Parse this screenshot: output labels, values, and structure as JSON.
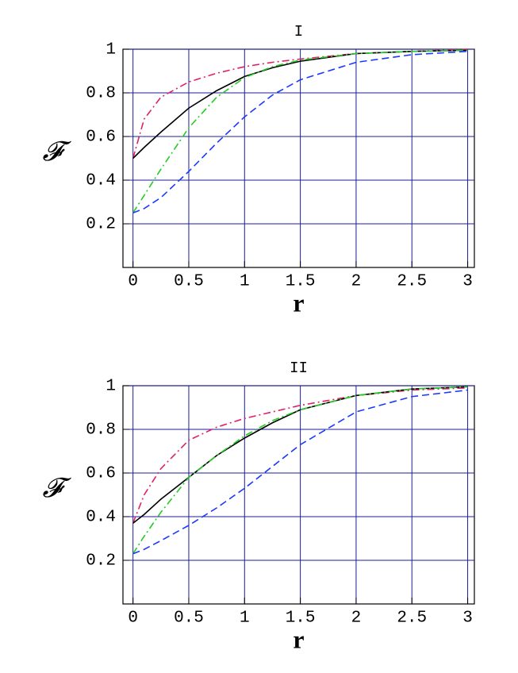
{
  "chart_data": [
    {
      "type": "line",
      "title": "I",
      "xlabel": "r",
      "ylabel": "𝓕",
      "x": [
        0,
        0.1,
        0.25,
        0.5,
        0.75,
        1,
        1.25,
        1.5,
        2,
        2.5,
        3
      ],
      "series": [
        {
          "color": "#e0206a",
          "dash": "dashdot",
          "values": [
            0.5,
            0.68,
            0.78,
            0.85,
            0.89,
            0.92,
            0.94,
            0.955,
            0.98,
            0.99,
            1.0
          ]
        },
        {
          "color": "#000000",
          "dash": "solid",
          "values": [
            0.5,
            0.55,
            0.62,
            0.73,
            0.81,
            0.875,
            0.915,
            0.945,
            0.98,
            0.99,
            0.995
          ]
        },
        {
          "color": "#22cc22",
          "dash": "dashdot",
          "values": [
            0.25,
            0.33,
            0.45,
            0.64,
            0.78,
            0.87,
            0.92,
            0.95,
            0.98,
            0.99,
            0.995
          ]
        },
        {
          "color": "#1a3aff",
          "dash": "dashed",
          "values": [
            0.25,
            0.27,
            0.32,
            0.44,
            0.57,
            0.69,
            0.79,
            0.86,
            0.94,
            0.975,
            0.99
          ]
        }
      ],
      "xlim": [
        -0.09,
        3.06
      ],
      "ylim": [
        0,
        1
      ],
      "xticks": [
        0,
        0.5,
        1,
        1.5,
        2,
        2.5,
        3
      ],
      "yticks": [
        0.2,
        0.4,
        0.6,
        0.8,
        1
      ],
      "grid": true,
      "grid_color": "#1c1c9c"
    },
    {
      "type": "line",
      "title": "II",
      "xlabel": "r",
      "ylabel": "𝓕",
      "x": [
        0,
        0.1,
        0.25,
        0.5,
        0.75,
        1,
        1.25,
        1.5,
        2,
        2.5,
        3
      ],
      "series": [
        {
          "color": "#e0206a",
          "dash": "dashdot",
          "values": [
            0.37,
            0.5,
            0.62,
            0.75,
            0.81,
            0.85,
            0.88,
            0.91,
            0.955,
            0.98,
            0.99
          ]
        },
        {
          "color": "#000000",
          "dash": "solid",
          "values": [
            0.37,
            0.41,
            0.48,
            0.58,
            0.68,
            0.76,
            0.83,
            0.89,
            0.955,
            0.985,
            0.995
          ]
        },
        {
          "color": "#22cc22",
          "dash": "dashdot",
          "values": [
            0.23,
            0.31,
            0.42,
            0.58,
            0.68,
            0.77,
            0.84,
            0.89,
            0.955,
            0.985,
            0.995
          ]
        },
        {
          "color": "#1a3aff",
          "dash": "dashed",
          "values": [
            0.23,
            0.25,
            0.29,
            0.36,
            0.44,
            0.53,
            0.63,
            0.73,
            0.88,
            0.95,
            0.98
          ]
        }
      ],
      "xlim": [
        -0.09,
        3.06
      ],
      "ylim": [
        0,
        1
      ],
      "xticks": [
        0,
        0.5,
        1,
        1.5,
        2,
        2.5,
        3
      ],
      "yticks": [
        0.2,
        0.4,
        0.6,
        0.8,
        1
      ],
      "grid": true,
      "grid_color": "#1c1c9c"
    }
  ]
}
